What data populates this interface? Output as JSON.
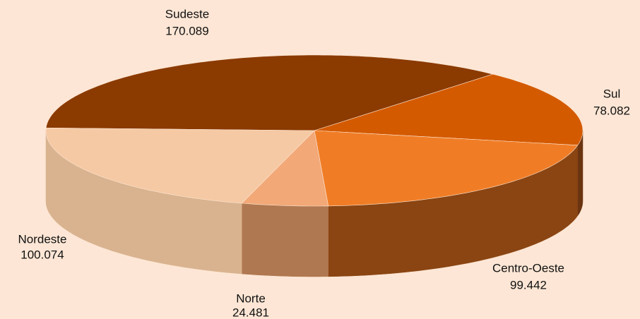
{
  "chart_data": {
    "type": "pie",
    "categories": [
      "Sudeste",
      "Sul",
      "Centro-Oeste",
      "Norte",
      "Nordeste"
    ],
    "values": [
      170089,
      78082,
      99442,
      24481,
      100074
    ],
    "value_labels": [
      "170.089",
      "78.082",
      "99.442",
      "24.481",
      "100.074"
    ],
    "colors": [
      "#8b3a00",
      "#d45a00",
      "#f07d26",
      "#f2a877",
      "#f5c9a4"
    ],
    "side_colors": [
      "#5e2700",
      "#6b3410",
      "#8a4512",
      "#b07850",
      "#d9b38f"
    ]
  }
}
